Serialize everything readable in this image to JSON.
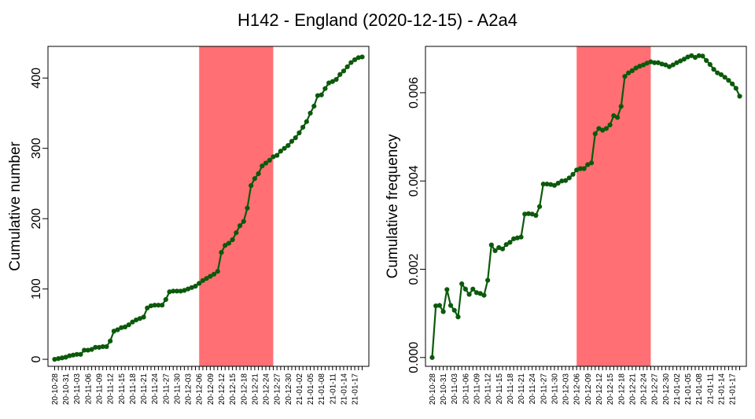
{
  "title": "H142 - England (2020-12-15) - A2a4",
  "colors": {
    "line": "#0b5a0b",
    "highlight": "#ff6f74"
  },
  "chart_data": [
    {
      "type": "line",
      "ylabel": "Cumulative number",
      "ylim": [
        -10,
        445
      ],
      "yticks": [
        0,
        100,
        200,
        300,
        400
      ],
      "ytick_labels": [
        "0",
        "100",
        "200",
        "300",
        "400"
      ],
      "x_start": "20-10-28",
      "x_tick_labels": [
        "20-10-28",
        "20-10-31",
        "20-11-03",
        "20-11-06",
        "20-11-09",
        "20-11-12",
        "20-11-15",
        "20-11-18",
        "20-11-21",
        "20-11-24",
        "20-11-27",
        "20-11-30",
        "20-12-03",
        "20-12-06",
        "20-12-09",
        "20-12-12",
        "20-12-15",
        "20-12-18",
        "20-12-21",
        "20-12-24",
        "20-12-27",
        "20-12-30",
        "21-01-02",
        "21-01-05",
        "21-01-08",
        "21-01-11",
        "21-01-14",
        "21-01-17"
      ],
      "highlight": [
        "20-12-06",
        "20-12-26"
      ],
      "grid": false,
      "values": [
        0,
        1,
        2,
        3,
        5,
        6,
        7,
        7,
        13,
        13,
        14,
        17,
        17,
        18,
        18,
        26,
        40,
        42,
        45,
        46,
        49,
        53,
        56,
        58,
        60,
        73,
        76,
        77,
        77,
        77,
        85,
        96,
        97,
        97,
        97,
        98,
        100,
        102,
        104,
        108,
        112,
        115,
        118,
        121,
        125,
        152,
        162,
        165,
        170,
        180,
        190,
        196,
        215,
        247,
        257,
        264,
        275,
        279,
        283,
        288,
        290,
        296,
        300,
        304,
        310,
        315,
        322,
        330,
        338,
        350,
        360,
        375,
        376,
        385,
        393,
        395,
        398,
        405,
        410,
        416,
        422,
        426,
        429,
        430
      ]
    },
    {
      "type": "line",
      "ylabel": "Cumulative frequency",
      "ylim": [
        -0.0002,
        0.00705
      ],
      "yticks": [
        0,
        0.002,
        0.004,
        0.006
      ],
      "ytick_labels": [
        "0.000",
        "0.002",
        "0.004",
        "0.006"
      ],
      "x_start": "20-10-28",
      "x_tick_labels": [
        "20-10-28",
        "20-10-31",
        "20-11-03",
        "20-11-06",
        "20-11-09",
        "20-11-12",
        "20-11-15",
        "20-11-18",
        "20-11-21",
        "20-11-24",
        "20-11-27",
        "20-11-30",
        "20-12-03",
        "20-12-06",
        "20-12-09",
        "20-12-12",
        "20-12-15",
        "20-12-18",
        "20-12-21",
        "20-12-24",
        "20-12-27",
        "20-12-30",
        "21-01-02",
        "21-01-05",
        "21-01-08",
        "21-01-11",
        "21-01-14",
        "21-01-17"
      ],
      "highlight": [
        "20-12-06",
        "20-12-26"
      ],
      "grid": false,
      "values": [
        0,
        0.00117,
        0.00118,
        0.00104,
        0.00154,
        0.00118,
        0.00107,
        0.00092,
        0.00167,
        0.00155,
        0.00143,
        0.00155,
        0.00147,
        0.00145,
        0.00141,
        0.00175,
        0.00255,
        0.00242,
        0.00249,
        0.00246,
        0.00256,
        0.00261,
        0.00269,
        0.00271,
        0.00273,
        0.00325,
        0.00326,
        0.00325,
        0.00322,
        0.00342,
        0.00393,
        0.00393,
        0.00392,
        0.0039,
        0.00395,
        0.004,
        0.00401,
        0.00407,
        0.00415,
        0.00425,
        0.00428,
        0.00428,
        0.00437,
        0.00441,
        0.00507,
        0.00519,
        0.00515,
        0.00519,
        0.00527,
        0.00548,
        0.00544,
        0.00569,
        0.00637,
        0.00645,
        0.0065,
        0.00656,
        0.0066,
        0.00663,
        0.00667,
        0.0067,
        0.00668,
        0.00668,
        0.00665,
        0.00663,
        0.00659,
        0.00663,
        0.00668,
        0.00672,
        0.00676,
        0.00681,
        0.00684,
        0.0068,
        0.00684,
        0.00683,
        0.00673,
        0.00664,
        0.00653,
        0.00645,
        0.00641,
        0.00635,
        0.00628,
        0.0062,
        0.0061,
        0.00592
      ]
    }
  ]
}
